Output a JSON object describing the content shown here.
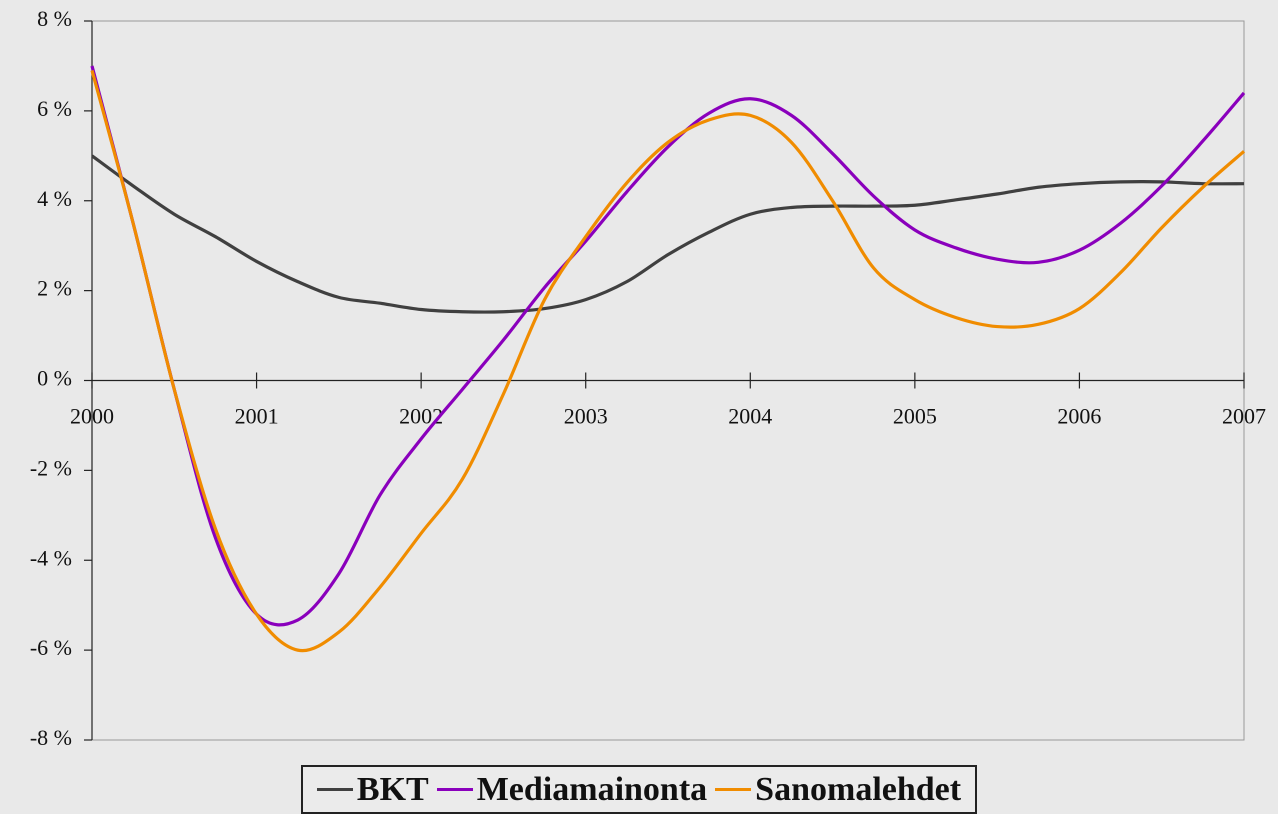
{
  "chart_data": {
    "type": "line",
    "x": [
      2000,
      2000.25,
      2000.5,
      2000.75,
      2001,
      2001.25,
      2001.5,
      2001.75,
      2002,
      2002.25,
      2002.5,
      2002.75,
      2003,
      2003.25,
      2003.5,
      2003.75,
      2004,
      2004.25,
      2004.5,
      2004.75,
      2005,
      2005.25,
      2005.5,
      2005.75,
      2006,
      2006.25,
      2006.5,
      2006.75,
      2007
    ],
    "series": [
      {
        "name": "BKT",
        "color": "#404040",
        "values": [
          5.0,
          4.33,
          3.7,
          3.2,
          2.65,
          2.2,
          1.85,
          1.72,
          1.58,
          1.53,
          1.53,
          1.6,
          1.8,
          2.2,
          2.8,
          3.3,
          3.7,
          3.85,
          3.88,
          3.88,
          3.9,
          4.02,
          4.15,
          4.3,
          4.38,
          4.42,
          4.42,
          4.38,
          4.38
        ]
      },
      {
        "name": "Mediamainonta",
        "color": "#8a00bc",
        "values": [
          7.0,
          3.5,
          -0.2,
          -3.5,
          -5.2,
          -5.33,
          -4.3,
          -2.55,
          -1.3,
          -0.2,
          0.9,
          2.07,
          3.1,
          4.2,
          5.2,
          5.95,
          6.27,
          5.9,
          5.05,
          4.1,
          3.35,
          2.95,
          2.7,
          2.63,
          2.9,
          3.5,
          4.33,
          5.33,
          6.4
        ]
      },
      {
        "name": "Sanomalehdet",
        "color": "#f08c00",
        "values": [
          6.9,
          3.5,
          -0.2,
          -3.3,
          -5.2,
          -6.0,
          -5.6,
          -4.6,
          -3.4,
          -2.2,
          -0.3,
          1.8,
          3.2,
          4.4,
          5.3,
          5.8,
          5.9,
          5.3,
          4.0,
          2.5,
          1.8,
          1.4,
          1.2,
          1.25,
          1.6,
          2.4,
          3.4,
          4.3,
          5.1
        ]
      }
    ],
    "xlim": [
      2000,
      2007
    ],
    "xticks": [
      2000,
      2001,
      2002,
      2003,
      2004,
      2005,
      2006,
      2007
    ],
    "ylim": [
      -8,
      8
    ],
    "yticks": [
      {
        "value": -8,
        "label": "-8 %"
      },
      {
        "value": -6,
        "label": "-6 %"
      },
      {
        "value": -4,
        "label": "-4 %"
      },
      {
        "value": -2,
        "label": "-2 %"
      },
      {
        "value": 0,
        "label": "0 %"
      },
      {
        "value": 2,
        "label": "2 %"
      },
      {
        "value": 4,
        "label": "4 %"
      },
      {
        "value": 6,
        "label": "6 %"
      },
      {
        "value": 8,
        "label": "8 %"
      }
    ],
    "legend": "bottom"
  }
}
